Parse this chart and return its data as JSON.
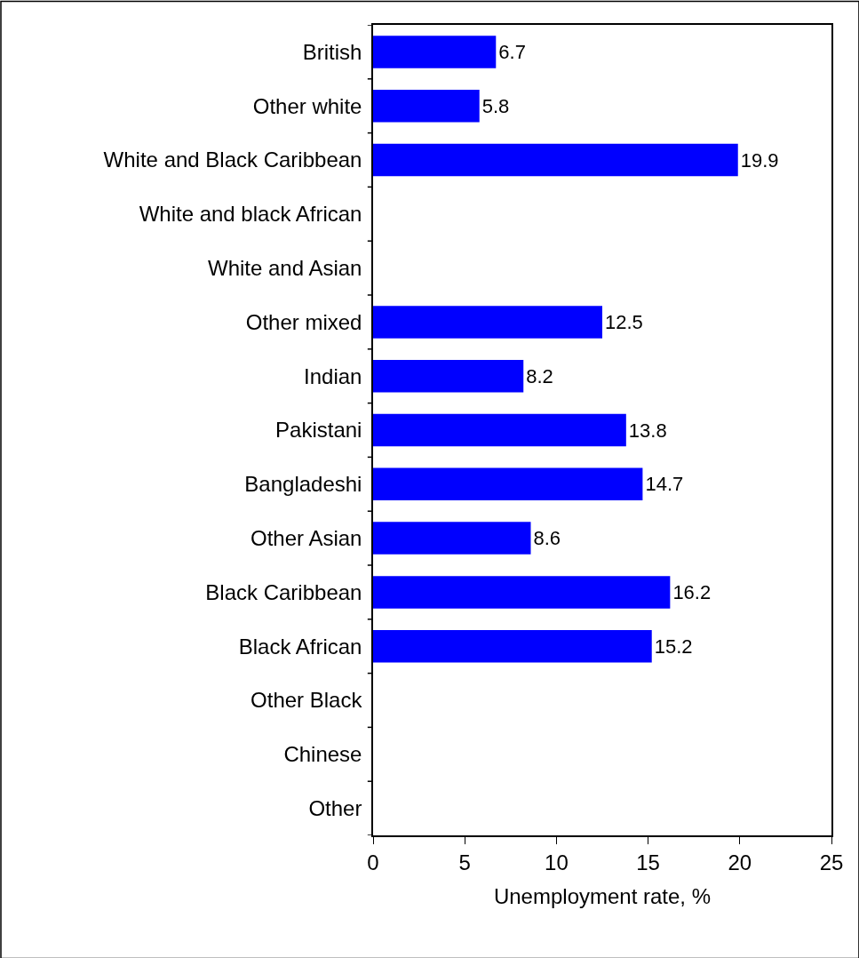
{
  "chart_data": {
    "type": "bar",
    "orientation": "horizontal",
    "categories": [
      "British",
      "Other white",
      "White and Black Caribbean",
      "White and black African",
      "White and Asian",
      "Other mixed",
      "Indian",
      "Pakistani",
      "Bangladeshi",
      "Other Asian",
      "Black Caribbean",
      "Black African",
      "Other Black",
      "Chinese",
      "Other"
    ],
    "values": [
      6.7,
      5.8,
      19.9,
      null,
      null,
      12.5,
      8.2,
      13.8,
      14.7,
      8.6,
      16.2,
      15.2,
      null,
      null,
      null
    ],
    "color": "#0000ff",
    "xlabel": "Unemployment rate, %",
    "xlim": [
      0,
      25
    ],
    "xticks": [
      0,
      5,
      10,
      15,
      20,
      25
    ],
    "data_labels": true,
    "legend": false
  }
}
